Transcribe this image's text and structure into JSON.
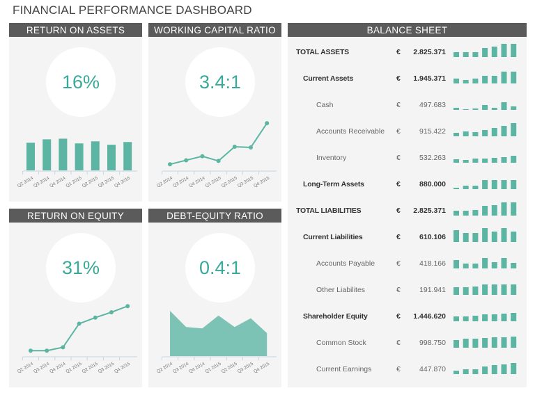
{
  "title": "FINANCIAL PERFORMANCE DASHBOARD",
  "accent": "#5bb5a2",
  "quarters": [
    "Q2 2014",
    "Q3 2014",
    "Q4 2014",
    "Q1 2015",
    "Q2 2015",
    "Q3 2015",
    "Q4 2015"
  ],
  "kpis": [
    {
      "title": "RETURN ON ASSETS",
      "value": "16%",
      "chart_type": "bar",
      "values": [
        41,
        46,
        47,
        40,
        43,
        38,
        42
      ]
    },
    {
      "title": "WORKING CAPITAL RATIO",
      "value": "3.4:1",
      "chart_type": "line",
      "values": [
        9,
        15,
        21,
        14,
        35,
        34,
        70
      ]
    },
    {
      "title": "RETURN ON EQUITY",
      "value": "31%",
      "chart_type": "line",
      "values": [
        8,
        8,
        13,
        48,
        57,
        65,
        74
      ]
    },
    {
      "title": "DEBT-EQUITY RATIO",
      "value": "0.4:1",
      "chart_type": "area",
      "values": [
        67,
        43,
        41,
        60,
        43,
        56,
        34
      ]
    }
  ],
  "balance_sheet": {
    "title": "BALANCE SHEET",
    "currency": "€",
    "rows": [
      {
        "label": "TOTAL ASSETS",
        "level": 0,
        "value": "2.825.371",
        "trend": [
          7,
          7,
          7,
          13,
          15,
          19,
          19
        ]
      },
      {
        "label": "Current Assets",
        "level": 1,
        "value": "1.945.371",
        "trend": [
          7,
          5,
          7,
          11,
          11,
          17,
          17
        ]
      },
      {
        "label": "Cash",
        "level": 2,
        "value": "497.683",
        "trend": [
          3,
          1,
          2,
          7,
          3,
          11,
          5
        ]
      },
      {
        "label": "Accounts Receivable",
        "level": 2,
        "value": "915.422",
        "trend": [
          5,
          7,
          6,
          9,
          12,
          15,
          19
        ]
      },
      {
        "label": "Inventory",
        "level": 2,
        "value": "532.263",
        "trend": [
          5,
          4,
          6,
          6,
          7,
          8,
          10
        ]
      },
      {
        "label": "Long-Term Assets",
        "level": 1,
        "value": "880.000",
        "trend": [
          2,
          5,
          5,
          13,
          13,
          13,
          13
        ]
      },
      {
        "label": "TOTAL LIABILITIES",
        "level": 0,
        "value": "2.825.371",
        "trend": [
          7,
          7,
          8,
          14,
          15,
          19,
          19
        ]
      },
      {
        "label": "Current Liabilities",
        "level": 1,
        "value": "610.106",
        "trend": [
          17,
          13,
          13,
          21,
          15,
          22,
          15
        ]
      },
      {
        "label": "Accounts Payable",
        "level": 2,
        "value": "418.166",
        "trend": [
          12,
          7,
          7,
          15,
          9,
          15,
          8
        ]
      },
      {
        "label": "Other Liabilites",
        "level": 2,
        "value": "191.941",
        "trend": [
          11,
          11,
          12,
          15,
          15,
          15,
          15
        ]
      },
      {
        "label": "Shareholder Equity",
        "level": 1,
        "value": "1.446.620",
        "trend": [
          7,
          7,
          8,
          10,
          10,
          11,
          12
        ]
      },
      {
        "label": "Common Stock",
        "level": 2,
        "value": "998.750",
        "trend": [
          11,
          13,
          13,
          14,
          15,
          15,
          16
        ]
      },
      {
        "label": "Current Earnings",
        "level": 2,
        "value": "447.870",
        "trend": [
          5,
          7,
          7,
          11,
          13,
          14,
          16
        ]
      }
    ]
  }
}
